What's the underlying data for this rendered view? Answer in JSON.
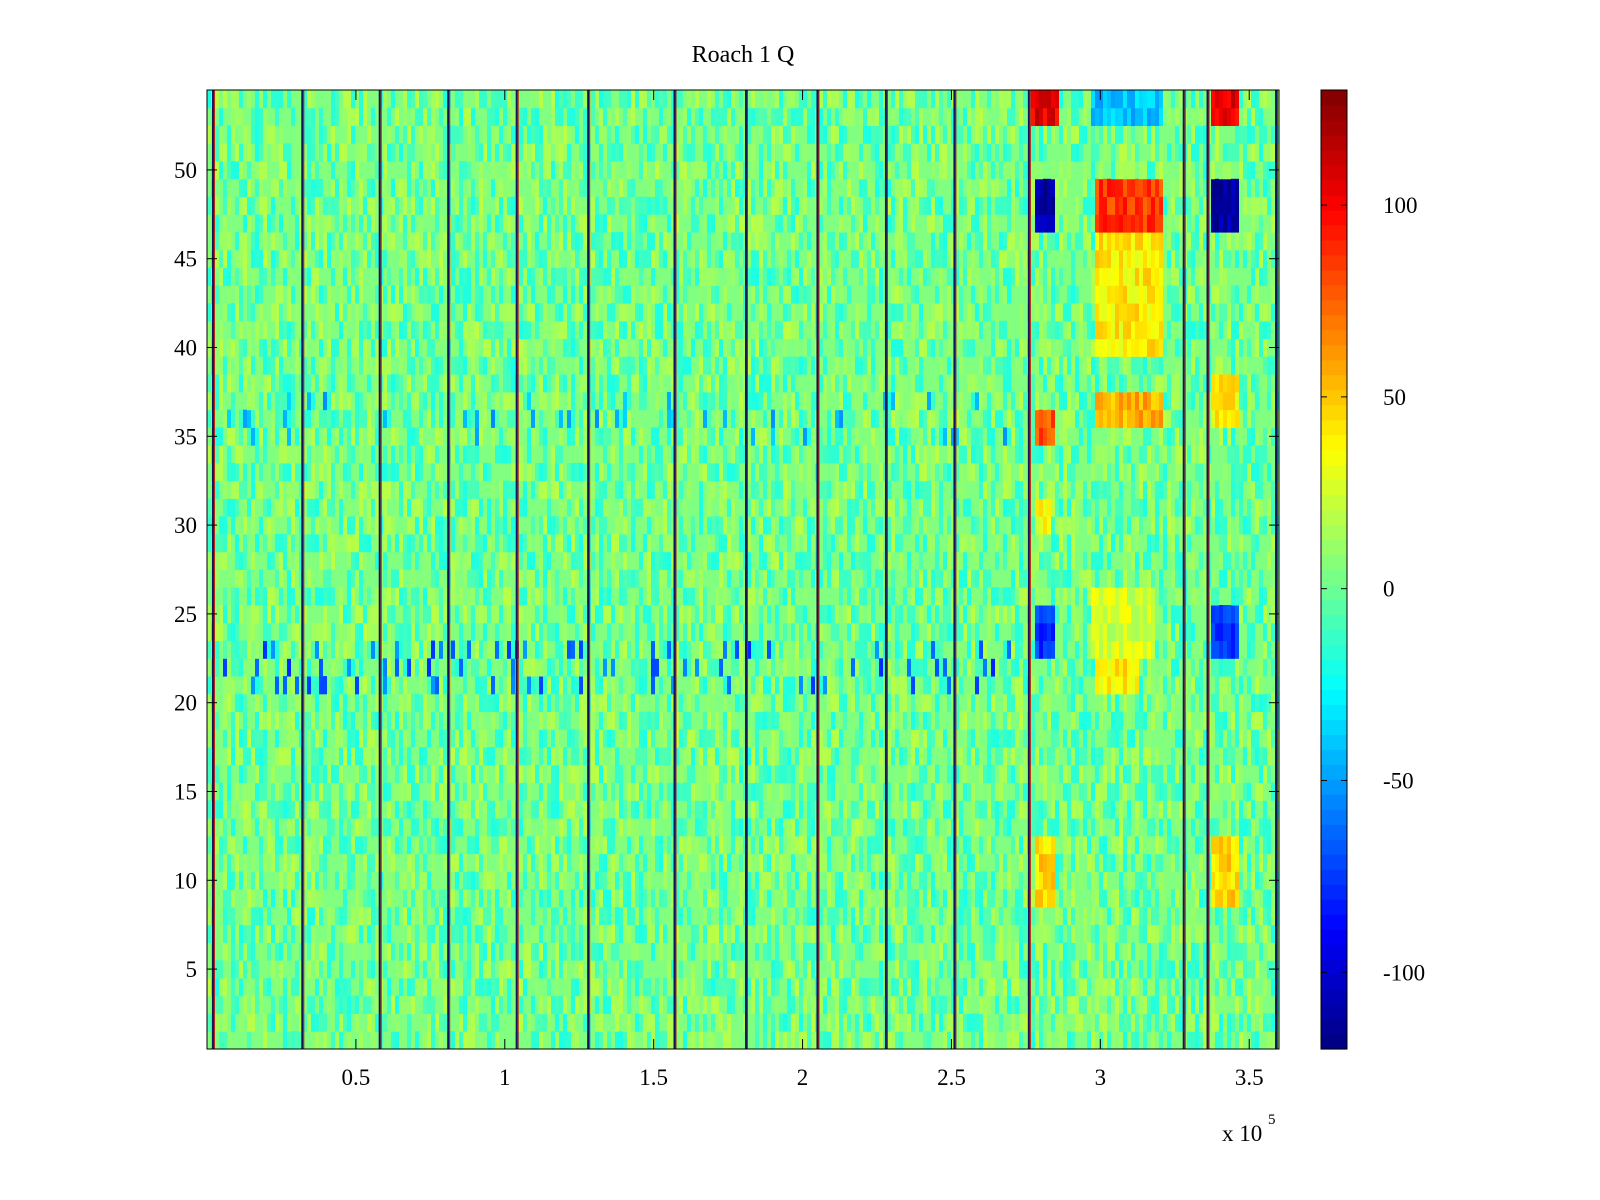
{
  "chart_data": {
    "type": "heatmap",
    "title": "Roach 1 Q",
    "xlabel": "",
    "ylabel": "",
    "xlim": [
      0,
      360000
    ],
    "ylim": [
      0.5,
      54.5
    ],
    "x_exponent_label": "x 10",
    "x_exponent_power": "5",
    "x_ticks": [
      {
        "value": 50000,
        "label": "0.5"
      },
      {
        "value": 100000,
        "label": "1"
      },
      {
        "value": 150000,
        "label": "1.5"
      },
      {
        "value": 200000,
        "label": "2"
      },
      {
        "value": 250000,
        "label": "2.5"
      },
      {
        "value": 300000,
        "label": "3"
      },
      {
        "value": 350000,
        "label": "3.5"
      }
    ],
    "y_ticks": [
      {
        "value": 5,
        "label": "5"
      },
      {
        "value": 10,
        "label": "10"
      },
      {
        "value": 15,
        "label": "15"
      },
      {
        "value": 20,
        "label": "20"
      },
      {
        "value": 25,
        "label": "25"
      },
      {
        "value": 30,
        "label": "30"
      },
      {
        "value": 35,
        "label": "35"
      },
      {
        "value": 40,
        "label": "40"
      },
      {
        "value": 45,
        "label": "45"
      },
      {
        "value": 50,
        "label": "50"
      }
    ],
    "colorbar": {
      "colormap": "jet",
      "clim": [
        -120,
        130
      ],
      "ticks": [
        {
          "value": 100,
          "label": "100"
        },
        {
          "value": 50,
          "label": "50"
        },
        {
          "value": 0,
          "label": "0"
        },
        {
          "value": -50,
          "label": "-50"
        },
        {
          "value": -100,
          "label": "-100"
        }
      ]
    },
    "segment_boundaries_x": [
      2000,
      32000,
      58000,
      81000,
      104000,
      128000,
      157000,
      181000,
      205000,
      228000,
      251000,
      276000,
      328000,
      336000,
      359000
    ],
    "features": [
      {
        "x_range": [
          276000,
          285000
        ],
        "y_range": [
          53,
          54.5
        ],
        "value": 105
      },
      {
        "x_range": [
          277000,
          284000
        ],
        "y_range": [
          47,
          49
        ],
        "value": -110
      },
      {
        "x_range": [
          277000,
          284000
        ],
        "y_range": [
          23,
          25
        ],
        "value": -75
      },
      {
        "x_range": [
          277000,
          284000
        ],
        "y_range": [
          35,
          36
        ],
        "value": 80
      },
      {
        "x_range": [
          277000,
          284000
        ],
        "y_range": [
          9,
          12
        ],
        "value": 45
      },
      {
        "x_range": [
          277000,
          283000
        ],
        "y_range": [
          29.5,
          30.5
        ],
        "value": 35
      },
      {
        "x_range": [
          297000,
          321000
        ],
        "y_range": [
          47,
          49
        ],
        "value": 85
      },
      {
        "x_range": [
          297000,
          321000
        ],
        "y_range": [
          40,
          46
        ],
        "value": 40
      },
      {
        "x_range": [
          297000,
          321000
        ],
        "y_range": [
          36,
          37
        ],
        "value": 55
      },
      {
        "x_range": [
          296000,
          318000
        ],
        "y_range": [
          23,
          26
        ],
        "value": 25
      },
      {
        "x_range": [
          298000,
          312000
        ],
        "y_range": [
          21,
          22
        ],
        "value": 40
      },
      {
        "x_range": [
          296000,
          320000
        ],
        "y_range": [
          53,
          54.5
        ],
        "value": -40
      },
      {
        "x_range": [
          337000,
          346000
        ],
        "y_range": [
          53,
          54.5
        ],
        "value": 105
      },
      {
        "x_range": [
          337000,
          346000
        ],
        "y_range": [
          47,
          49
        ],
        "value": -110
      },
      {
        "x_range": [
          337000,
          346000
        ],
        "y_range": [
          23,
          25
        ],
        "value": -75
      },
      {
        "x_range": [
          337000,
          346000
        ],
        "y_range": [
          9,
          12
        ],
        "value": 45
      },
      {
        "x_range": [
          337000,
          346000
        ],
        "y_range": [
          36,
          38
        ],
        "value": 40
      }
    ],
    "grid": false,
    "legend": "none"
  }
}
